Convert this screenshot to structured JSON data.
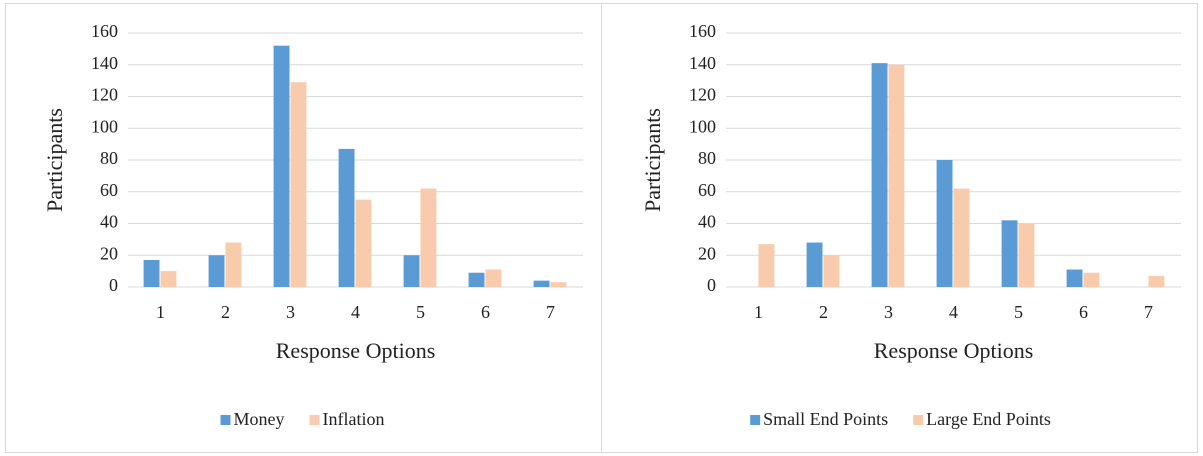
{
  "chart_data": [
    {
      "type": "bar",
      "x_label": "Response Options",
      "y_label": "Participants",
      "categories": [
        "1",
        "2",
        "3",
        "4",
        "5",
        "6",
        "7"
      ],
      "series": [
        {
          "name": "Money",
          "color": "#5b9bd5",
          "values": [
            17,
            20,
            152,
            87,
            20,
            9,
            4
          ]
        },
        {
          "name": "Inflation",
          "color": "#f8cbad",
          "values": [
            10,
            28,
            129,
            55,
            62,
            11,
            3
          ]
        }
      ],
      "ylim": [
        0,
        160
      ],
      "yticks": [
        0,
        20,
        40,
        60,
        80,
        100,
        120,
        140,
        160
      ],
      "grid": true,
      "legend": "bottom"
    },
    {
      "type": "bar",
      "x_label": "Response Options",
      "y_label": "Participants",
      "categories": [
        "1",
        "2",
        "3",
        "4",
        "5",
        "6",
        "7"
      ],
      "series": [
        {
          "name": "Small End Points",
          "color": "#5b9bd5",
          "values": [
            0,
            28,
            141,
            80,
            42,
            11,
            0
          ]
        },
        {
          "name": "Large End Points",
          "color": "#f8cbad",
          "values": [
            27,
            20,
            140,
            62,
            40,
            9,
            7
          ]
        }
      ],
      "ylim": [
        0,
        160
      ],
      "yticks": [
        0,
        20,
        40,
        60,
        80,
        100,
        120,
        140,
        160
      ],
      "grid": true,
      "legend": "bottom"
    }
  ]
}
